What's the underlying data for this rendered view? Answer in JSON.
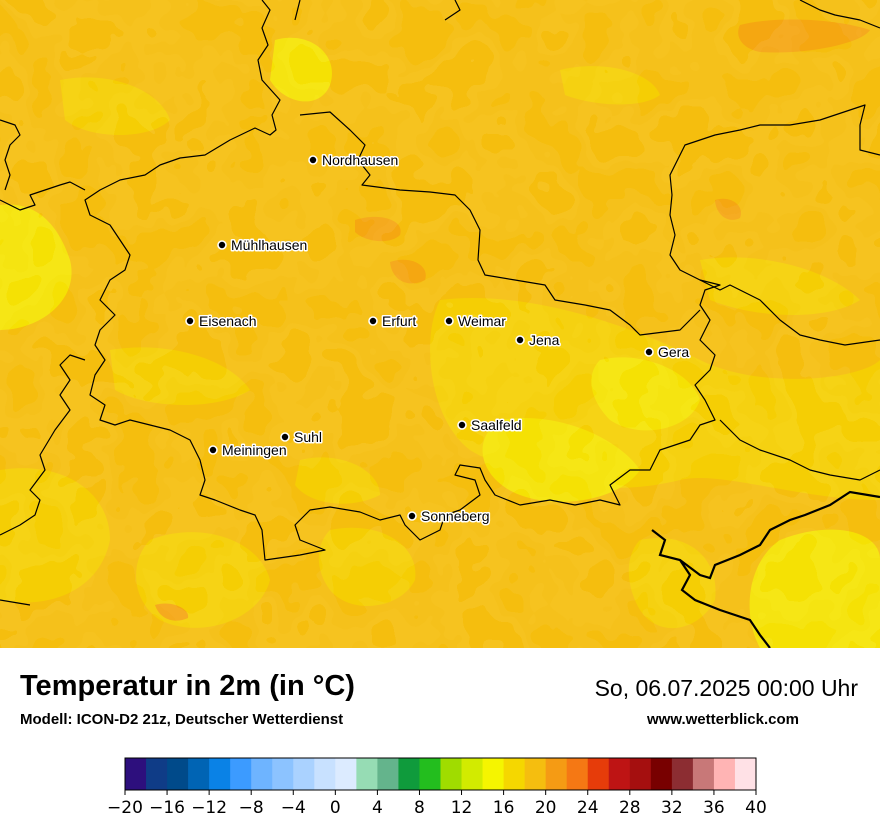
{
  "map": {
    "cities": [
      {
        "name": "Nordhausen"
      },
      {
        "name": "Mühlhausen"
      },
      {
        "name": "Eisenach"
      },
      {
        "name": "Erfurt"
      },
      {
        "name": "Weimar"
      },
      {
        "name": "Jena"
      },
      {
        "name": "Gera"
      },
      {
        "name": "Suhl"
      },
      {
        "name": "Meiningen"
      },
      {
        "name": "Saalfeld"
      },
      {
        "name": "Sonneberg"
      }
    ]
  },
  "footer": {
    "title": "Temperatur in 2m (in °C)",
    "model": "Modell: ICON-D2 21z, Deutscher Wetterdienst",
    "datetime": "So, 06.07.2025 00:00 Uhr",
    "website": "www.wetterblick.com"
  },
  "legend": {
    "ticks": [
      "−20",
      "−16",
      "−12",
      "−8",
      "−4",
      "0",
      "4",
      "8",
      "12",
      "16",
      "20",
      "24",
      "28",
      "32",
      "36",
      "40"
    ],
    "colors": [
      "#2d0f7d",
      "#0f3c87",
      "#004a8a",
      "#0064b4",
      "#0a82e6",
      "#3c9bff",
      "#6eb4ff",
      "#8cc3ff",
      "#aad2ff",
      "#c8e1ff",
      "#dcebff",
      "#96dcb4",
      "#64b48c",
      "#0f9b3c",
      "#23be1e",
      "#a0dc00",
      "#d2eb00",
      "#f5f500",
      "#f5d700",
      "#f5be0f",
      "#f59b14",
      "#f57814",
      "#e63c0a",
      "#be1414",
      "#a50f0f",
      "#780000",
      "#8c2d32",
      "#c87878",
      "#ffb4b4",
      "#ffe1e6"
    ]
  }
}
